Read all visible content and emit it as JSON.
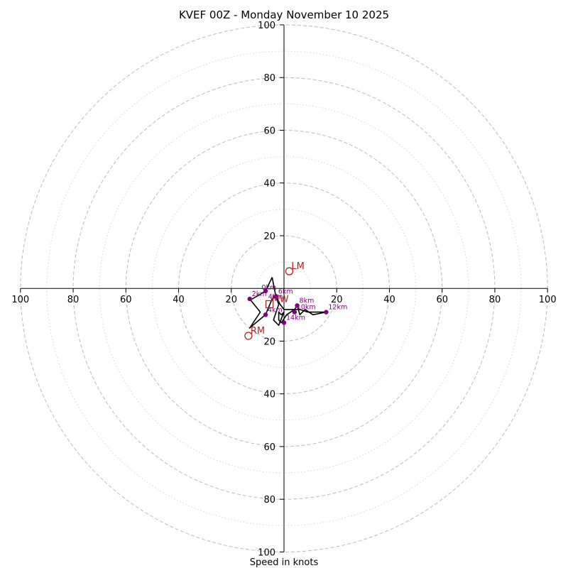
{
  "chart_data": {
    "type": "scatter",
    "subtype": "hodograph",
    "title": "KVEF 00Z - Monday November 10 2025",
    "xlabel": "Speed in knots",
    "ylabel": "",
    "range": [
      -100,
      100
    ],
    "ring_values": [
      20,
      40,
      60,
      80,
      100
    ],
    "minor_ring_values": [
      10,
      30,
      50,
      70,
      90
    ],
    "axis_ticks": {
      "right": [
        "20",
        "40",
        "60",
        "80",
        "100"
      ],
      "left": [
        "20",
        "40",
        "60",
        "80",
        "100"
      ],
      "top": [
        "20",
        "40",
        "60",
        "80",
        "100"
      ],
      "bottom": [
        "20",
        "40",
        "60",
        "80",
        "100"
      ]
    },
    "grid": true,
    "colors": {
      "trace": "#000000",
      "height_marker": "#800080",
      "storm_motion": "#b22222",
      "grid": "#bbbbbb",
      "minor_grid": "#d4d4d4",
      "axes": "#000000"
    },
    "trace": [
      {
        "u": -4.5,
        "v": 4.2
      },
      {
        "u": -7,
        "v": -1
      },
      {
        "u": -12,
        "v": -4
      },
      {
        "u": -13,
        "v": -4
      },
      {
        "u": -9,
        "v": -9
      },
      {
        "u": -13,
        "v": -15
      },
      {
        "u": -7,
        "v": -10
      },
      {
        "u": -4.5,
        "v": -4
      },
      {
        "u": -3,
        "v": -3
      },
      {
        "u": -1.5,
        "v": -6
      },
      {
        "u": 0,
        "v": -8
      },
      {
        "u": 3,
        "v": -8
      },
      {
        "u": 4,
        "v": -8
      },
      {
        "u": 5,
        "v": -6.5
      },
      {
        "u": 6,
        "v": -10
      },
      {
        "u": 7,
        "v": -9
      },
      {
        "u": 8,
        "v": -8
      },
      {
        "u": 11,
        "v": -10
      },
      {
        "u": 16,
        "v": -9
      },
      {
        "u": 12,
        "v": -9
      },
      {
        "u": 9,
        "v": -9
      },
      {
        "u": 6,
        "v": -8
      },
      {
        "u": 4,
        "v": -8
      },
      {
        "u": 1,
        "v": -10
      },
      {
        "u": -1,
        "v": -13
      },
      {
        "u": -2,
        "v": -12
      },
      {
        "u": -2,
        "v": -9
      },
      {
        "u": -1,
        "v": -10
      },
      {
        "u": 0,
        "v": -9
      },
      {
        "u": -2,
        "v": -14
      },
      {
        "u": -4,
        "v": -12
      },
      {
        "u": -2,
        "v": -6
      },
      {
        "u": -3,
        "v": -3.5
      },
      {
        "u": -4.5,
        "v": 4.2
      }
    ],
    "height_markers": [
      {
        "label": "",
        "u": -7,
        "v": -1
      },
      {
        "label": "2km",
        "u": -13,
        "v": -4
      },
      {
        "label": "4km",
        "u": -7,
        "v": -10
      },
      {
        "label": "6km",
        "u": -3,
        "v": -3
      },
      {
        "label": "8km",
        "u": 5,
        "v": -6.5
      },
      {
        "label": "10km",
        "u": 4,
        "v": -9
      },
      {
        "label": "12km",
        "u": 16,
        "v": -9
      },
      {
        "label": "14km",
        "u": 0,
        "v": -13
      }
    ],
    "storm_motion": [
      {
        "label": "LM",
        "u": 2,
        "v": 6.5,
        "shape": "circle"
      },
      {
        "label": "RM",
        "u": -13.5,
        "v": -18,
        "shape": "circle"
      },
      {
        "label": "MW",
        "u": -5.5,
        "v": -6,
        "shape": "square"
      }
    ],
    "extra_labels": [
      {
        "text": "0km",
        "u": -8.5,
        "v": -0.5
      },
      {
        "text": "4km",
        "u": -6,
        "v": -4
      }
    ]
  }
}
